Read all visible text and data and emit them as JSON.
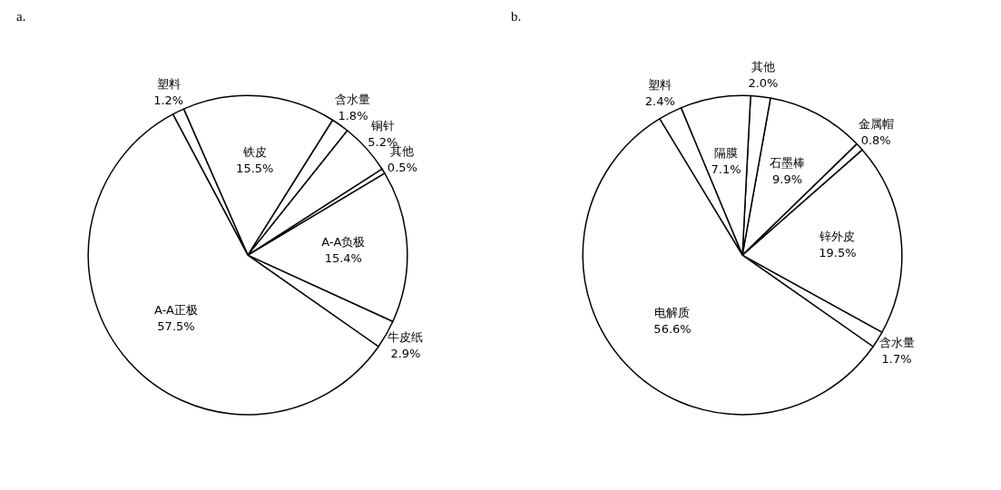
{
  "chart_data": [
    {
      "type": "pie",
      "title": "a.",
      "categories": [
        "牛皮纸",
        "A-A负极",
        "其他",
        "铜针",
        "含水量",
        "铁皮",
        "塑料",
        "A-A正极"
      ],
      "values": [
        2.9,
        15.4,
        0.5,
        5.2,
        1.8,
        15.5,
        1.2,
        57.5
      ],
      "value_labels": [
        "2.9%",
        "15.4%",
        "0.5%",
        "5.2%",
        "1.8%",
        "15.5%",
        "1.2%",
        "57.5%"
      ],
      "colors": [
        "#ffffff",
        "#ffffff",
        "#ffffff",
        "#ffffff",
        "#ffffff",
        "#ffffff",
        "#ffffff",
        "#ffffff"
      ]
    },
    {
      "type": "pie",
      "title": "b.",
      "categories": [
        "含水量",
        "锌外皮",
        "金属帽",
        "石墨棒",
        "其他",
        "隔膜",
        "塑料",
        "电解质"
      ],
      "values": [
        1.7,
        19.5,
        0.8,
        9.9,
        2.0,
        7.1,
        2.4,
        56.6
      ],
      "value_labels": [
        "1.7%",
        "19.5%",
        "0.8%",
        "9.9%",
        "2.0%",
        "7.1%",
        "2.4%",
        "56.6%"
      ],
      "colors": [
        "#ffffff",
        "#ffffff",
        "#ffffff",
        "#ffffff",
        "#ffffff",
        "#ffffff",
        "#ffffff",
        "#ffffff"
      ]
    }
  ]
}
